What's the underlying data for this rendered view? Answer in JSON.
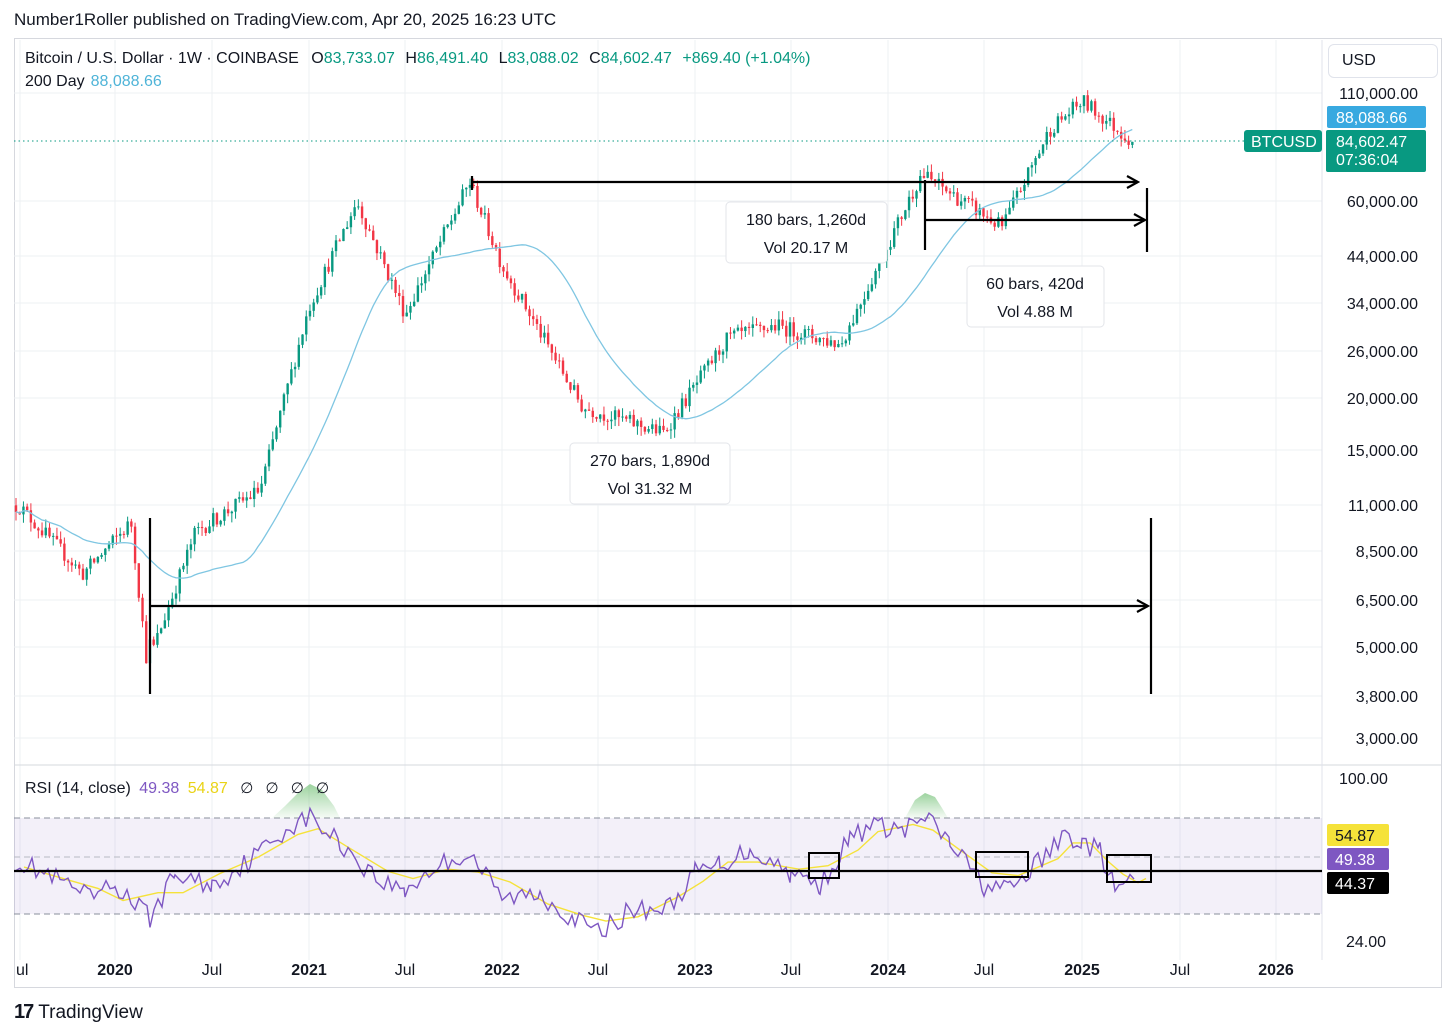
{
  "header": {
    "published_line": "Number1Roller published on TradingView.com, Apr 20, 2025 16:23 UTC"
  },
  "legend": {
    "symbol": "Bitcoin / U.S. Dollar · 1W · COINBASE",
    "open_label": "O",
    "open": "83,733.07",
    "high_label": "H",
    "high": "86,491.40",
    "low_label": "L",
    "low": "83,088.02",
    "close_label": "C",
    "close": "84,602.47",
    "change": "+869.40 (+1.04%)",
    "ma_label": "200 Day",
    "ma_value": "88,088.66"
  },
  "toolbar": {
    "currency": "USD"
  },
  "price_tags": {
    "ma_tag": "88,088.66",
    "symbol_tag": "BTCUSD",
    "last_price": "84,602.47",
    "countdown": "07:36:04"
  },
  "rsi_legend": {
    "label": "RSI (14, close)",
    "rsi_value": "49.38",
    "ma_value": "54.87",
    "extra": "∅ ∅ ∅ ∅"
  },
  "rsi_tags": {
    "ma_tag": "54.87",
    "rsi_tag": "49.38",
    "line_tag": "44.37"
  },
  "footer": {
    "logo": "17",
    "brand": "TradingView"
  },
  "colors": {
    "up": "#089981",
    "down": "#f23645",
    "ma": "#7fc6e2",
    "rsi": "#7e57c2",
    "rsi_ma": "#f5e23a",
    "accent_tag": "#38a9e0"
  },
  "chart_data": [
    {
      "type": "candlestick",
      "title": "Bitcoin / U.S. Dollar · 1W · COINBASE",
      "y_scale": "log",
      "y_ticks": [
        "110,000.00",
        "60,000.00",
        "44,000.00",
        "34,000.00",
        "26,000.00",
        "20,000.00",
        "15,000.00",
        "11,000.00",
        "8,500.00",
        "6,500.00",
        "5,000.00",
        "3,800.00",
        "3,000.00"
      ],
      "x_ticks": [
        "ul",
        "2020",
        "Jul",
        "2021",
        "Jul",
        "2022",
        "Jul",
        "2023",
        "Jul",
        "2024",
        "Jul",
        "2025",
        "Jul",
        "2026"
      ],
      "approx_price_path": {
        "x": [
          "2019-07",
          "2019-11",
          "2020-02",
          "2020-03",
          "2020-06",
          "2020-10",
          "2021-01",
          "2021-04",
          "2021-07",
          "2021-11",
          "2022-01",
          "2022-06",
          "2022-11",
          "2023-03",
          "2023-06",
          "2023-10",
          "2024-03",
          "2024-08",
          "2024-11",
          "2025-01",
          "2025-04"
        ],
        "y": [
          11000,
          7500,
          10000,
          4500,
          9500,
          12000,
          33000,
          60000,
          32000,
          67000,
          42000,
          19000,
          16500,
          28000,
          30000,
          27000,
          70000,
          52000,
          90000,
          105000,
          84602
        ]
      },
      "series": [
        {
          "name": "200 Day",
          "last": 88088.66
        }
      ],
      "annotations": [
        {
          "text_line1": "270 bars, 1,890d",
          "text_line2": "Vol 31.32 M"
        },
        {
          "text_line1": "180 bars, 1,260d",
          "text_line2": "Vol 20.17 M"
        },
        {
          "text_line1": "60 bars, 420d",
          "text_line2": "Vol 4.88 M"
        }
      ]
    },
    {
      "type": "line",
      "title": "RSI (14, close)",
      "y_ticks": [
        "100.00",
        "24.00"
      ],
      "bands": {
        "upper": 70,
        "middle": 50,
        "lower": 30
      },
      "horizontal_line": 44.37,
      "series": [
        {
          "name": "RSI",
          "last": 49.38
        },
        {
          "name": "RSI-based MA",
          "last": 54.87
        }
      ]
    }
  ]
}
